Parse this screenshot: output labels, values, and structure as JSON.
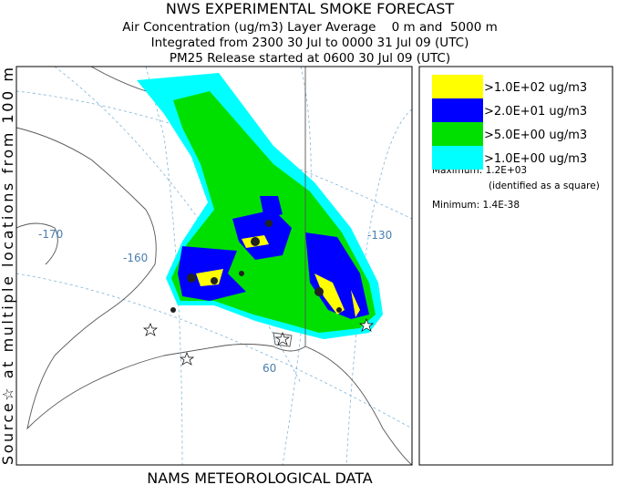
{
  "header": {
    "title": "NWS EXPERIMENTAL SMOKE FORECAST",
    "lines": [
      "Air Concentration (ug/m3) Layer Average    0 m and  5000 m",
      "Integrated from 2300 30 Jul to 0000 31 Jul 09 (UTC)",
      "PM25 Release started at 0600 30 Jul 09 (UTC)"
    ]
  },
  "side_label": "Source☆ at multiple locations    from   100 m",
  "footer": "NAMS METEOROLOGICAL DATA",
  "legend": {
    "entries": [
      {
        "label": ">1.0E+02 ug/m3",
        "color": "#ffff00"
      },
      {
        "label": ">2.0E+01 ug/m3",
        "color": "#0000ff"
      },
      {
        "label": ">5.0E+00 ug/m3",
        "color": "#00e000"
      },
      {
        "label": ">1.0E+00 ug/m3",
        "color": "#00ffff"
      }
    ],
    "maximum": "Maximum: 1.2E+03",
    "maximum_note": "(identified as a square)",
    "minimum": "Minimum: 1.4E-38"
  },
  "map": {
    "labels": [
      "-170",
      "-160",
      "-130",
      "60"
    ]
  }
}
